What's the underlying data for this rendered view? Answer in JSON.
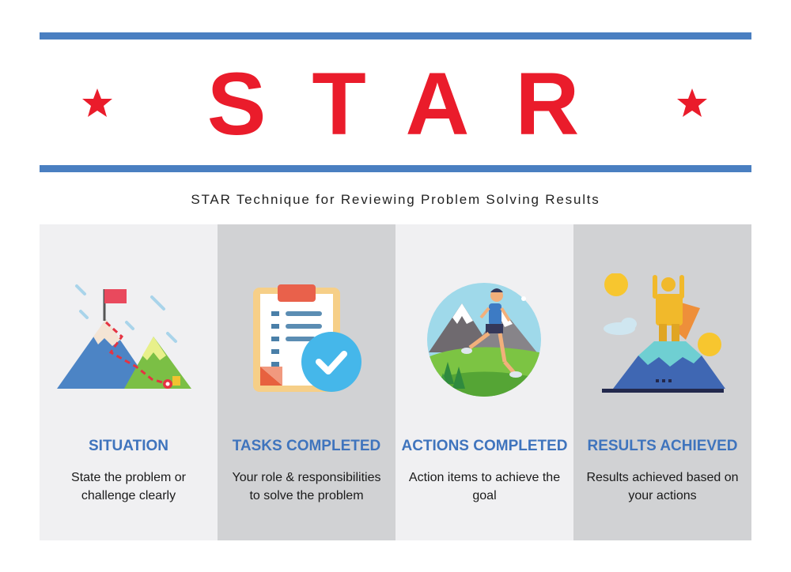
{
  "header": {
    "title": "STAR",
    "subtitle": "STAR Technique for Reviewing Problem Solving Results"
  },
  "colors": {
    "accent_red": "#ea1c2b",
    "rule_blue": "#4a7fc1",
    "heading_blue": "#3f74bd",
    "panel_light": "#f0f0f2",
    "panel_dark": "#d1d2d4"
  },
  "panels": [
    {
      "heading": "SITUATION",
      "description": "State the problem or challenge clearly",
      "icon": "mountain-flag-icon"
    },
    {
      "heading": "TASKS COMPLETED",
      "description": "Your role & responsibilities to solve the problem",
      "icon": "clipboard-check-icon"
    },
    {
      "heading": "ACTIONS COMPLETED",
      "description": "Action items to achieve the goal",
      "icon": "runner-icon"
    },
    {
      "heading": "RESULTS ACHIEVED",
      "description": "Results achieved based on your actions",
      "icon": "summit-hero-icon"
    }
  ]
}
